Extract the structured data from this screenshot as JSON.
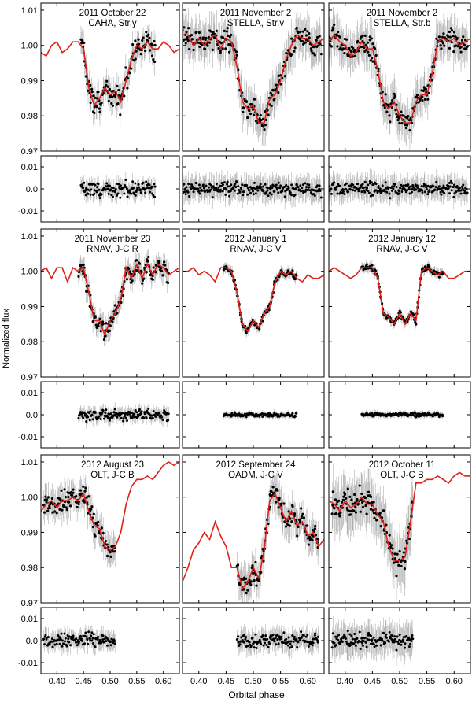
{
  "figure": {
    "ylabel": "Normalized flux",
    "xlabel": "Orbital phase",
    "model_color": "#e0201a",
    "point_color": "#000000",
    "errorbar_color": "#9a9a9a"
  },
  "chart_data": [
    {
      "type": "scatter",
      "row": 0,
      "col": 0,
      "title": "2011 October 22",
      "subtitle": "CAHA, Str.y",
      "xlim": [
        0.37,
        0.63
      ],
      "ylim": [
        0.97,
        1.012
      ],
      "resid_ylim": [
        -0.015,
        0.015
      ],
      "yticks": [
        "1.01",
        "1.00",
        "0.99",
        "0.98",
        "0.97"
      ],
      "resid_yticks": [
        "0.01",
        "0.0",
        "-0.01"
      ],
      "xticks": [],
      "data_range": [
        0.445,
        0.585
      ],
      "err_amp": 0.003,
      "noise": 0.003,
      "model": {
        "phase": [
          0.37,
          0.38,
          0.39,
          0.4,
          0.41,
          0.42,
          0.43,
          0.44,
          0.45,
          0.46,
          0.47,
          0.48,
          0.49,
          0.5,
          0.51,
          0.52,
          0.53,
          0.54,
          0.55,
          0.56,
          0.57,
          0.58,
          0.59,
          0.6,
          0.61,
          0.62,
          0.63
        ],
        "flux": [
          0.998,
          0.997,
          1.0,
          1.001,
          0.998,
          0.999,
          1.001,
          1.001,
          0.999,
          0.988,
          0.983,
          0.985,
          0.988,
          0.986,
          0.987,
          0.984,
          0.99,
          0.996,
          1.0,
          0.999,
          1.001,
          0.999,
          0.999,
          1.001,
          1.0,
          0.998,
          0.999
        ]
      }
    },
    {
      "type": "scatter",
      "row": 0,
      "col": 1,
      "title": "2011 November 2",
      "subtitle": "STELLA, Str.v",
      "xlim": [
        0.37,
        0.63
      ],
      "ylim": [
        0.97,
        1.012
      ],
      "resid_ylim": [
        -0.015,
        0.015
      ],
      "yticks": [],
      "resid_yticks": [],
      "xticks": [],
      "data_range": [
        0.37,
        0.625
      ],
      "err_amp": 0.0045,
      "noise": 0.0025,
      "model": {
        "phase": [
          0.37,
          0.38,
          0.39,
          0.4,
          0.41,
          0.42,
          0.43,
          0.44,
          0.45,
          0.46,
          0.47,
          0.48,
          0.49,
          0.5,
          0.51,
          0.52,
          0.53,
          0.54,
          0.55,
          0.56,
          0.57,
          0.58,
          0.59,
          0.6,
          0.61,
          0.62,
          0.63
        ],
        "flux": [
          1.003,
          1.003,
          1.0,
          1.002,
          1.0,
          1.002,
          1.003,
          0.999,
          1.002,
          1.001,
          0.994,
          0.984,
          0.982,
          0.983,
          0.978,
          0.978,
          0.985,
          0.986,
          0.99,
          0.996,
          1.0,
          1.003,
          1.002,
          1.002,
          1.0,
          1.001,
          1.002
        ]
      }
    },
    {
      "type": "scatter",
      "row": 0,
      "col": 2,
      "title": "2011 November 2",
      "subtitle": "STELLA, Str.b",
      "xlim": [
        0.37,
        0.63
      ],
      "ylim": [
        0.97,
        1.012
      ],
      "resid_ylim": [
        -0.015,
        0.015
      ],
      "yticks": [],
      "resid_yticks": [],
      "xticks": [],
      "data_range": [
        0.37,
        0.625
      ],
      "err_amp": 0.0045,
      "noise": 0.0025,
      "model": {
        "phase": [
          0.37,
          0.38,
          0.39,
          0.4,
          0.41,
          0.42,
          0.43,
          0.44,
          0.45,
          0.46,
          0.47,
          0.48,
          0.49,
          0.5,
          0.51,
          0.52,
          0.53,
          0.54,
          0.55,
          0.56,
          0.57,
          0.58,
          0.59,
          0.6,
          0.61,
          0.62,
          0.63
        ],
        "flux": [
          1.001,
          1.003,
          1.001,
          1.0,
          0.997,
          0.998,
          1.001,
          0.999,
          0.999,
          0.993,
          0.984,
          0.982,
          0.984,
          0.98,
          0.978,
          0.978,
          0.984,
          0.986,
          0.986,
          0.992,
          1.001,
          1.002,
          1.001,
          1.002,
          1.0,
          1.001,
          1.002
        ]
      }
    },
    {
      "type": "scatter",
      "row": 1,
      "col": 0,
      "title": "2011 November 23",
      "subtitle": "RNAV, J-C R",
      "xlim": [
        0.37,
        0.63
      ],
      "ylim": [
        0.97,
        1.012
      ],
      "resid_ylim": [
        -0.015,
        0.015
      ],
      "yticks": [
        "1.01",
        "1.00",
        "0.99",
        "0.98",
        "0.97"
      ],
      "resid_yticks": [
        "0.01",
        "0.0",
        "-0.01"
      ],
      "xticks": [],
      "data_range": [
        0.44,
        0.61
      ],
      "err_amp": 0.0025,
      "noise": 0.002,
      "model": {
        "phase": [
          0.37,
          0.38,
          0.39,
          0.4,
          0.41,
          0.42,
          0.43,
          0.44,
          0.45,
          0.46,
          0.47,
          0.48,
          0.49,
          0.5,
          0.51,
          0.52,
          0.53,
          0.54,
          0.55,
          0.56,
          0.57,
          0.58,
          0.59,
          0.6,
          0.61,
          0.62,
          0.63
        ],
        "flux": [
          1.0,
          1.001,
          0.998,
          1.001,
          1.001,
          0.997,
          1.001,
          1.0,
          1.001,
          0.994,
          0.986,
          0.986,
          0.982,
          0.986,
          0.988,
          0.992,
          1.001,
          0.998,
          1.002,
          0.998,
          1.002,
          0.999,
          1.002,
          1.001,
          0.999,
          1.0,
          1.001
        ]
      }
    },
    {
      "type": "scatter",
      "row": 1,
      "col": 1,
      "title": "2012 January 1",
      "subtitle": "RNAV, J-C V",
      "xlim": [
        0.37,
        0.63
      ],
      "ylim": [
        0.97,
        1.012
      ],
      "resid_ylim": [
        -0.015,
        0.015
      ],
      "yticks": [],
      "resid_yticks": [],
      "xticks": [],
      "data_range": [
        0.445,
        0.58
      ],
      "err_amp": 0.0012,
      "noise": 0.0007,
      "model": {
        "phase": [
          0.37,
          0.38,
          0.39,
          0.4,
          0.41,
          0.42,
          0.43,
          0.44,
          0.45,
          0.46,
          0.47,
          0.48,
          0.49,
          0.5,
          0.51,
          0.52,
          0.53,
          0.54,
          0.55,
          0.56,
          0.57,
          0.58,
          0.59,
          0.6,
          0.61,
          0.62,
          0.63
        ],
        "flux": [
          1.0,
          1.0,
          1.001,
          0.999,
          1.0,
          0.999,
          0.997,
          1.001,
          1.001,
          1.0,
          0.994,
          0.985,
          0.983,
          0.986,
          0.984,
          0.988,
          0.99,
          0.997,
          1.0,
          0.999,
          1.0,
          0.998,
          0.997,
          0.999,
          0.998,
          0.998,
          0.999
        ]
      }
    },
    {
      "type": "scatter",
      "row": 1,
      "col": 2,
      "title": "2012 January 12",
      "subtitle": "RNAV, J-C V",
      "xlim": [
        0.37,
        0.63
      ],
      "ylim": [
        0.97,
        1.012
      ],
      "resid_ylim": [
        -0.015,
        0.015
      ],
      "yticks": [],
      "resid_yticks": [],
      "xticks": [],
      "data_range": [
        0.43,
        0.58
      ],
      "err_amp": 0.0012,
      "noise": 0.0007,
      "model": {
        "phase": [
          0.37,
          0.38,
          0.39,
          0.4,
          0.41,
          0.42,
          0.43,
          0.44,
          0.45,
          0.46,
          0.47,
          0.48,
          0.49,
          0.5,
          0.51,
          0.52,
          0.53,
          0.54,
          0.55,
          0.56,
          0.57,
          0.58,
          0.59,
          0.6,
          0.61,
          0.62,
          0.63
        ],
        "flux": [
          1.0,
          1.001,
          1.0,
          0.999,
          0.998,
          0.999,
          1.001,
          1.001,
          1.001,
          0.998,
          0.988,
          0.987,
          0.985,
          0.988,
          0.985,
          0.988,
          0.986,
          1.0,
          1.001,
          1.0,
          0.999,
          1.0,
          0.998,
          0.998,
          0.999,
          1.0,
          1.0
        ]
      }
    },
    {
      "type": "scatter",
      "row": 2,
      "col": 0,
      "title": "2012 August 23",
      "subtitle": "OLT, J-C B",
      "xlim": [
        0.37,
        0.63
      ],
      "ylim": [
        0.97,
        1.012
      ],
      "resid_ylim": [
        -0.015,
        0.015
      ],
      "yticks": [
        "1.01",
        "1.00",
        "0.99",
        "0.98",
        "0.97"
      ],
      "resid_yticks": [
        "0.01",
        "0.0",
        "-0.01"
      ],
      "xticks": [
        "0.40",
        "0.45",
        "0.50",
        "0.55",
        "0.60"
      ],
      "data_range": [
        0.375,
        0.51
      ],
      "err_amp": 0.0035,
      "noise": 0.0025,
      "model": {
        "phase": [
          0.37,
          0.38,
          0.39,
          0.4,
          0.41,
          0.42,
          0.43,
          0.44,
          0.45,
          0.46,
          0.47,
          0.48,
          0.49,
          0.5,
          0.51,
          0.52,
          0.53,
          0.54,
          0.55,
          0.56,
          0.57,
          0.58,
          0.59,
          0.6,
          0.61,
          0.62,
          0.63
        ],
        "flux": [
          0.996,
          0.998,
          0.999,
          0.997,
          0.999,
          0.999,
          1.0,
          0.999,
          1.001,
          0.996,
          0.992,
          0.991,
          0.986,
          0.985,
          0.986,
          0.99,
          0.998,
          1.003,
          1.005,
          1.005,
          1.006,
          1.005,
          1.007,
          1.009,
          1.01,
          1.009,
          1.01
        ]
      }
    },
    {
      "type": "scatter",
      "row": 2,
      "col": 1,
      "title": "2012 September 24",
      "subtitle": "OADM, J-C V",
      "xlim": [
        0.37,
        0.63
      ],
      "ylim": [
        0.97,
        1.012
      ],
      "resid_ylim": [
        -0.015,
        0.015
      ],
      "yticks": [],
      "resid_yticks": [],
      "xticks": [
        "0.40",
        "0.45",
        "0.50",
        "0.55",
        "0.60"
      ],
      "data_range": [
        0.47,
        0.62
      ],
      "err_amp": 0.004,
      "noise": 0.0025,
      "model": {
        "phase": [
          0.37,
          0.38,
          0.39,
          0.4,
          0.41,
          0.42,
          0.43,
          0.44,
          0.45,
          0.46,
          0.47,
          0.48,
          0.49,
          0.5,
          0.51,
          0.52,
          0.53,
          0.54,
          0.55,
          0.56,
          0.57,
          0.58,
          0.59,
          0.6,
          0.61,
          0.62,
          0.63
        ],
        "flux": [
          0.976,
          0.98,
          0.985,
          0.987,
          0.99,
          0.988,
          0.993,
          0.989,
          0.986,
          0.98,
          0.98,
          0.974,
          0.976,
          0.98,
          0.977,
          0.985,
          0.999,
          1.001,
          0.997,
          0.993,
          0.996,
          0.992,
          0.993,
          0.989,
          0.99,
          0.986,
          0.988
        ]
      }
    },
    {
      "type": "scatter",
      "row": 2,
      "col": 2,
      "title": "2012 October 11",
      "subtitle": "OLT, J-C B",
      "xlim": [
        0.37,
        0.63
      ],
      "ylim": [
        0.97,
        1.012
      ],
      "resid_ylim": [
        -0.015,
        0.015
      ],
      "yticks": [],
      "resid_yticks": [],
      "xticks": [
        "0.40",
        "0.45",
        "0.50",
        "0.55",
        "0.60"
      ],
      "data_range": [
        0.375,
        0.525
      ],
      "err_amp": 0.006,
      "noise": 0.003,
      "model": {
        "phase": [
          0.37,
          0.38,
          0.39,
          0.4,
          0.41,
          0.42,
          0.43,
          0.44,
          0.45,
          0.46,
          0.47,
          0.48,
          0.49,
          0.5,
          0.51,
          0.52,
          0.53,
          0.54,
          0.55,
          0.56,
          0.57,
          0.58,
          0.59,
          0.6,
          0.61,
          0.62,
          0.63
        ],
        "flux": [
          0.999,
          0.998,
          0.996,
          0.999,
          0.997,
          0.998,
          1.0,
          0.998,
          0.998,
          0.995,
          0.993,
          0.986,
          0.982,
          0.982,
          0.983,
          0.993,
          1.004,
          1.004,
          1.005,
          1.005,
          1.006,
          1.005,
          1.004,
          1.006,
          1.007,
          1.006,
          1.006
        ]
      }
    }
  ]
}
